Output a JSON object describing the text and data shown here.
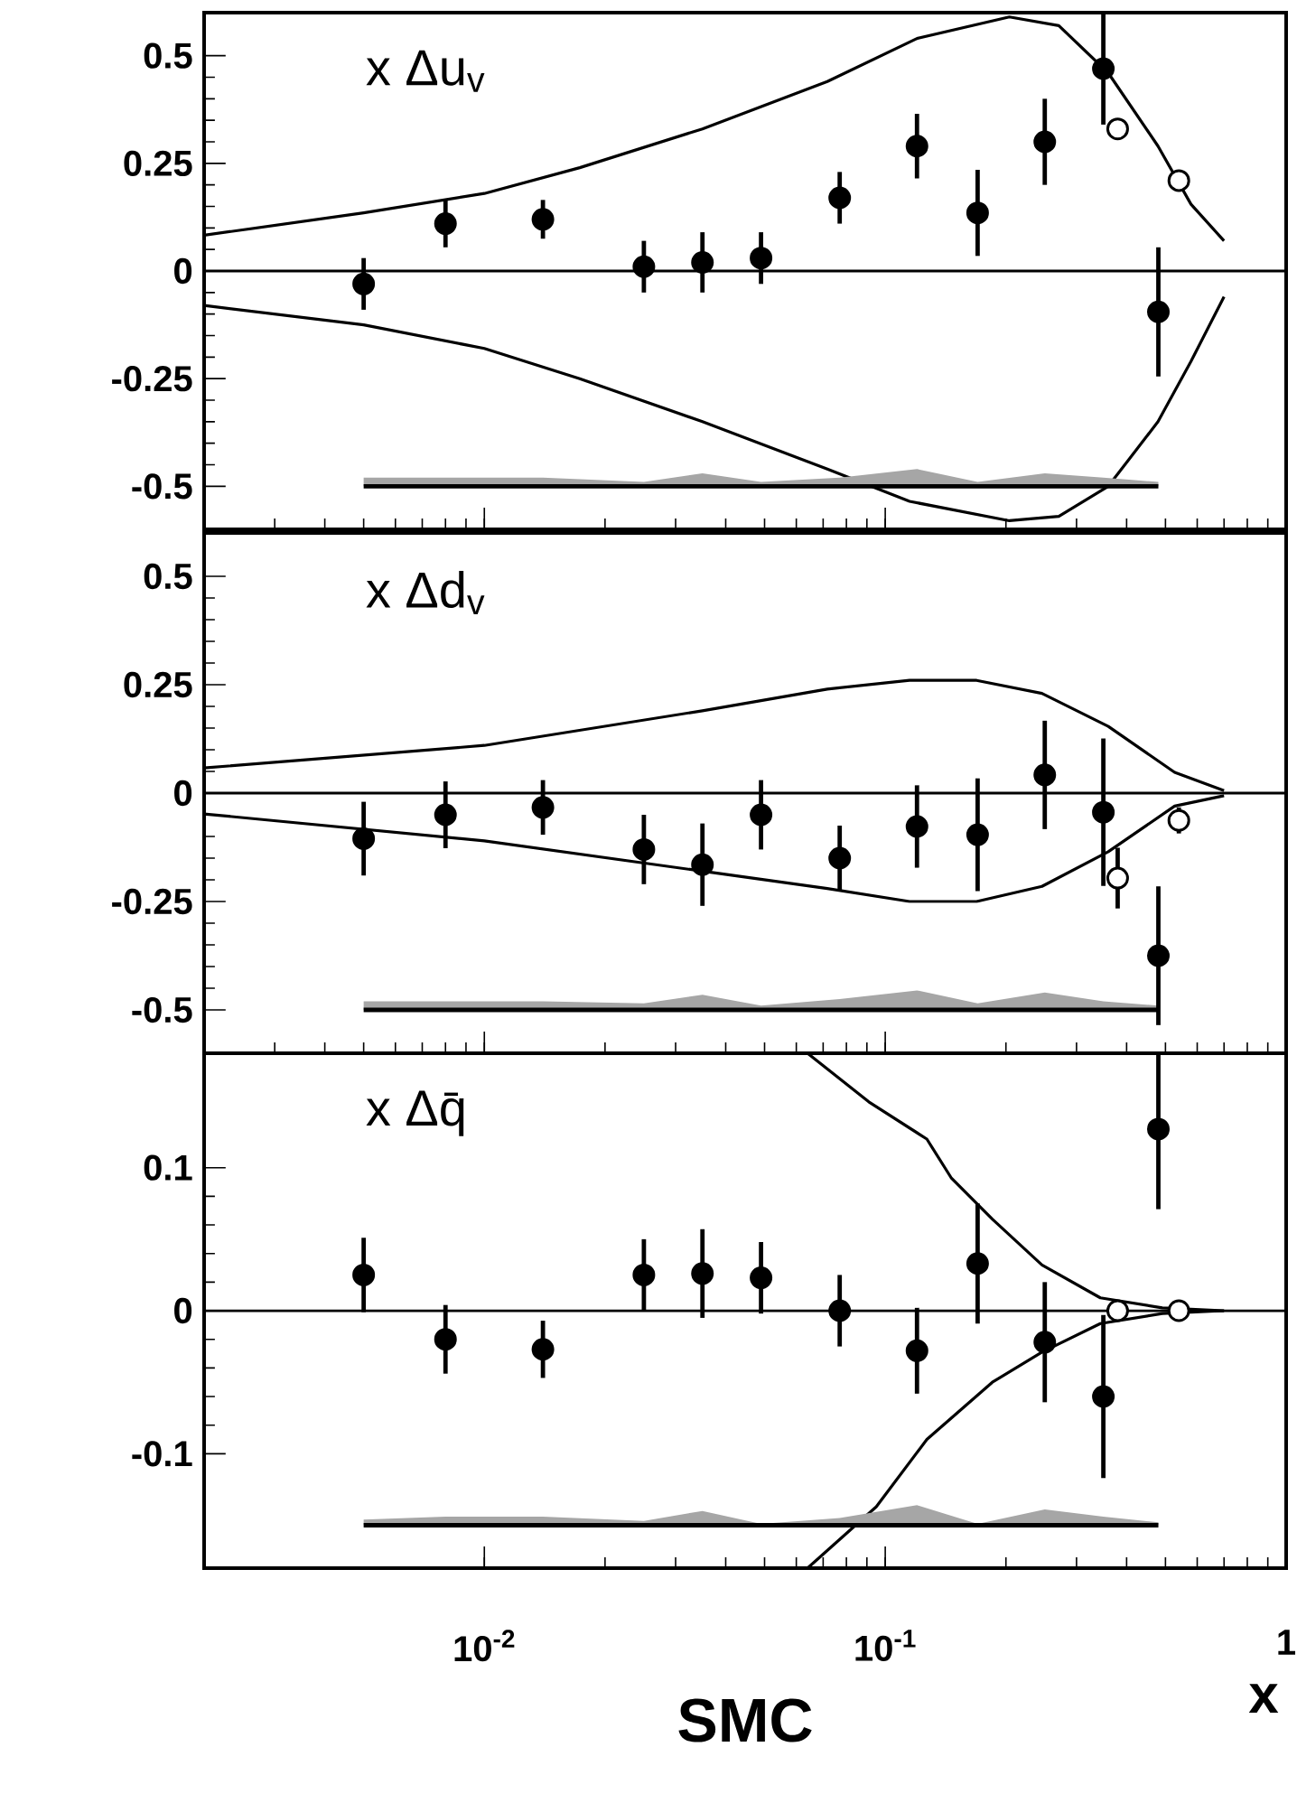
{
  "chart_data": [
    {
      "type": "scatter",
      "title": "x Δu$_{v}$",
      "log": "x",
      "xlim": [
        0.002,
        1
      ],
      "ylim": [
        -0.6,
        0.6
      ],
      "tick_labels": "y",
      "yticks": [
        -0.5,
        -0.25,
        0,
        0.25,
        0.5
      ],
      "ref_lines": [
        {
          "axis": "y",
          "value": 0
        }
      ],
      "series": [
        {
          "type": "line",
          "color": "#000000",
          "marker": "none",
          "x": [
            0.002,
            0.005,
            0.01,
            0.0173,
            0.035,
            0.0717,
            0.12,
            0.204,
            0.271,
            0.36,
            0.479,
            0.579,
            0.7
          ],
          "values": [
            0.083,
            0.135,
            0.18,
            0.24,
            0.33,
            0.44,
            0.54,
            0.59,
            0.57,
            0.46,
            0.29,
            0.155,
            0.07
          ]
        },
        {
          "type": "line",
          "color": "#000000",
          "marker": "none",
          "x": [
            0.002,
            0.005,
            0.01,
            0.0173,
            0.035,
            0.0717,
            0.115,
            0.204,
            0.271,
            0.36,
            0.479,
            0.579,
            0.7
          ],
          "values": [
            -0.08,
            -0.125,
            -0.18,
            -0.25,
            -0.35,
            -0.46,
            -0.535,
            -0.58,
            -0.57,
            -0.5,
            -0.35,
            -0.21,
            -0.06
          ]
        },
        {
          "type": "line",
          "color": "#000000",
          "marker": "none",
          "x": [
            0.005,
            0.008,
            0.014,
            0.025,
            0.035,
            0.049,
            0.077,
            0.12,
            0.17,
            0.25,
            0.35,
            0.48
          ],
          "values": [
            -0.5,
            -0.5,
            -0.5,
            -0.5,
            -0.5,
            -0.5,
            -0.5,
            -0.5,
            -0.5,
            -0.5,
            -0.5,
            -0.5
          ],
          "lower": [
            -0.5,
            -0.5,
            -0.5,
            -0.5,
            -0.5,
            -0.5,
            -0.5,
            -0.5,
            -0.5,
            -0.5,
            -0.5,
            -0.5
          ],
          "upper": [
            -0.48,
            -0.48,
            -0.48,
            -0.49,
            -0.47,
            -0.49,
            -0.48,
            -0.46,
            -0.49,
            -0.47,
            -0.48,
            -0.49
          ]
        },
        {
          "color": "#000000",
          "marker": "circle",
          "x": [
            0.005,
            0.008,
            0.014,
            0.025,
            0.035,
            0.049,
            0.077,
            0.12,
            0.17,
            0.25,
            0.35,
            0.48
          ],
          "values": [
            -0.03,
            0.11,
            0.12,
            0.01,
            0.02,
            0.03,
            0.17,
            0.29,
            0.135,
            0.3,
            0.47,
            -0.095
          ],
          "errors": [
            0.06,
            0.055,
            0.045,
            0.06,
            0.07,
            0.06,
            0.06,
            0.075,
            0.1,
            0.1,
            0.13,
            0.15
          ]
        },
        {
          "color": "#ffffff",
          "marker": "circle",
          "x": [
            0.38,
            0.54
          ],
          "values": [
            0.33,
            0.21
          ]
        }
      ]
    },
    {
      "type": "scatter",
      "title": "x Δd$_{v}$",
      "log": "x",
      "xlim": [
        0.002,
        1
      ],
      "ylim": [
        -0.6,
        0.6
      ],
      "tick_labels": "y",
      "yticks": [
        -0.5,
        -0.25,
        0,
        0.25,
        0.5
      ],
      "ref_lines": [
        {
          "axis": "y",
          "value": 0
        }
      ],
      "series": [
        {
          "type": "line",
          "color": "#000000",
          "marker": "none",
          "x": [
            0.002,
            0.01,
            0.035,
            0.0717,
            0.115,
            0.169,
            0.246,
            0.36,
            0.527,
            0.7
          ],
          "values": [
            0.058,
            0.11,
            0.19,
            0.24,
            0.26,
            0.26,
            0.23,
            0.154,
            0.048,
            0.006
          ]
        },
        {
          "type": "line",
          "color": "#000000",
          "marker": "none",
          "x": [
            0.002,
            0.01,
            0.035,
            0.0717,
            0.115,
            0.169,
            0.246,
            0.36,
            0.527,
            0.7
          ],
          "values": [
            -0.048,
            -0.11,
            -0.18,
            -0.22,
            -0.25,
            -0.25,
            -0.215,
            -0.135,
            -0.03,
            -0.006
          ]
        },
        {
          "type": "line",
          "color": "#000000",
          "marker": "none",
          "x": [
            0.005,
            0.008,
            0.014,
            0.025,
            0.035,
            0.049,
            0.077,
            0.12,
            0.17,
            0.25,
            0.35,
            0.48
          ],
          "values": [
            -0.5,
            -0.5,
            -0.5,
            -0.5,
            -0.5,
            -0.5,
            -0.5,
            -0.5,
            -0.5,
            -0.5,
            -0.5,
            -0.5
          ],
          "lower": [
            -0.5,
            -0.5,
            -0.5,
            -0.5,
            -0.5,
            -0.5,
            -0.5,
            -0.5,
            -0.5,
            -0.5,
            -0.5,
            -0.5
          ],
          "upper": [
            -0.48,
            -0.48,
            -0.48,
            -0.485,
            -0.465,
            -0.49,
            -0.475,
            -0.455,
            -0.485,
            -0.46,
            -0.48,
            -0.49
          ]
        },
        {
          "color": "#000000",
          "marker": "circle",
          "x": [
            0.005,
            0.008,
            0.014,
            0.025,
            0.035,
            0.049,
            0.077,
            0.12,
            0.17,
            0.25,
            0.35,
            0.48
          ],
          "values": [
            -0.105,
            -0.05,
            -0.033,
            -0.13,
            -0.165,
            -0.05,
            -0.15,
            -0.077,
            -0.096,
            0.042,
            -0.044,
            -0.375
          ],
          "errors": [
            0.085,
            0.077,
            0.063,
            0.08,
            0.095,
            0.08,
            0.075,
            0.095,
            0.13,
            0.125,
            0.17,
            0.16
          ]
        },
        {
          "color": "#ffffff",
          "marker": "circle",
          "x": [
            0.38,
            0.54
          ],
          "values": [
            -0.196,
            -0.063
          ],
          "errors": [
            0.07,
            0.03
          ]
        }
      ]
    },
    {
      "type": "scatter",
      "title": "x Δq̄",
      "log": "x",
      "xlim": [
        0.002,
        1
      ],
      "ylim": [
        -0.18,
        0.18
      ],
      "xlabel": "x",
      "xticks": [
        {
          "value": 0.01,
          "label": "10$^{-2}$"
        },
        {
          "value": 0.1,
          "label": "10$^{-1}$"
        },
        1
      ],
      "yticks": [
        -0.1,
        0,
        0.1
      ],
      "ref_lines": [
        {
          "axis": "y",
          "value": 0
        }
      ],
      "annotations": [
        "SMC"
      ],
      "series": [
        {
          "type": "line",
          "color": "#000000",
          "marker": "none",
          "x": [
            0.064,
            0.091,
            0.127,
            0.146,
            0.185,
            0.246,
            0.344,
            0.491,
            0.7
          ],
          "values": [
            0.18,
            0.146,
            0.12,
            0.093,
            0.064,
            0.032,
            0.009,
            0.002,
            0
          ]
        },
        {
          "type": "line",
          "color": "#000000",
          "marker": "none",
          "x": [
            0.064,
            0.095,
            0.127,
            0.185,
            0.246,
            0.344,
            0.491,
            0.7
          ],
          "values": [
            -0.18,
            -0.137,
            -0.09,
            -0.05,
            -0.029,
            -0.009,
            -0.002,
            0
          ]
        },
        {
          "type": "line",
          "color": "#000000",
          "marker": "none",
          "x": [
            0.005,
            0.008,
            0.014,
            0.025,
            0.035,
            0.049,
            0.077,
            0.12,
            0.17,
            0.25,
            0.35,
            0.48
          ],
          "values": [
            -0.15,
            -0.15,
            -0.15,
            -0.15,
            -0.15,
            -0.15,
            -0.15,
            -0.15,
            -0.15,
            -0.15,
            -0.15,
            -0.15
          ],
          "lower": [
            -0.15,
            -0.15,
            -0.15,
            -0.15,
            -0.15,
            -0.15,
            -0.15,
            -0.15,
            -0.15,
            -0.15,
            -0.15,
            -0.15
          ],
          "upper": [
            -0.146,
            -0.144,
            -0.144,
            -0.147,
            -0.14,
            -0.149,
            -0.145,
            -0.136,
            -0.149,
            -0.139,
            -0.144,
            -0.148
          ]
        },
        {
          "color": "#000000",
          "marker": "circle",
          "x": [
            0.005,
            0.008,
            0.014,
            0.025,
            0.035,
            0.049,
            0.077,
            0.12,
            0.17,
            0.25,
            0.35,
            0.48
          ],
          "values": [
            0.025,
            -0.02,
            -0.027,
            0.025,
            0.026,
            0.023,
            0,
            -0.028,
            0.033,
            -0.022,
            -0.06,
            0.127
          ],
          "errors": [
            0.026,
            0.024,
            0.02,
            0.025,
            0.031,
            0.025,
            0.025,
            0.03,
            0.042,
            0.042,
            0.057,
            0.056
          ]
        },
        {
          "color": "#ffffff",
          "marker": "circle",
          "x": [
            0.38,
            0.54
          ],
          "values": [
            0,
            0
          ]
        }
      ]
    }
  ]
}
